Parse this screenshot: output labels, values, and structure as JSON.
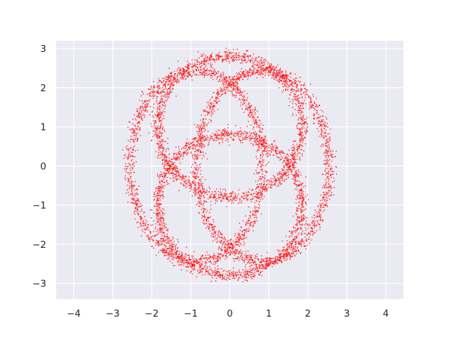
{
  "chart_data": {
    "type": "scatter",
    "title": "",
    "xlabel": "",
    "ylabel": "",
    "xlim": [
      -4.45,
      4.45
    ],
    "ylim": [
      -3.4,
      3.2
    ],
    "xticks": [
      -4,
      -3,
      -2,
      -1,
      0,
      1,
      2,
      3,
      4
    ],
    "yticks": [
      -3,
      -2,
      -1,
      0,
      1,
      2,
      3
    ],
    "xtick_labels": [
      "−4",
      "−3",
      "−2",
      "−1",
      "0",
      "1",
      "2",
      "3",
      "4"
    ],
    "ytick_labels": [
      "−3",
      "−2",
      "−1",
      "0",
      "1",
      "2",
      "3"
    ],
    "grid": true,
    "legend": "none",
    "background_color": "#EAEAF2",
    "grid_color": "#FFFFFF",
    "point_color": "#FF0000",
    "structure": "noisy points scattered along four overlapping ellipses",
    "rings": [
      {
        "center": [
          0,
          1.0
        ],
        "semi_axes": [
          1.85,
          1.8
        ]
      },
      {
        "center": [
          0,
          -1.0
        ],
        "semi_axes": [
          1.85,
          1.8
        ]
      },
      {
        "center": [
          -0.85,
          0
        ],
        "semi_axes": [
          1.7,
          2.45
        ]
      },
      {
        "center": [
          0.85,
          0
        ],
        "semi_axes": [
          1.7,
          2.45
        ]
      }
    ],
    "noise_std": 0.08,
    "points_per_ring": 1600
  }
}
